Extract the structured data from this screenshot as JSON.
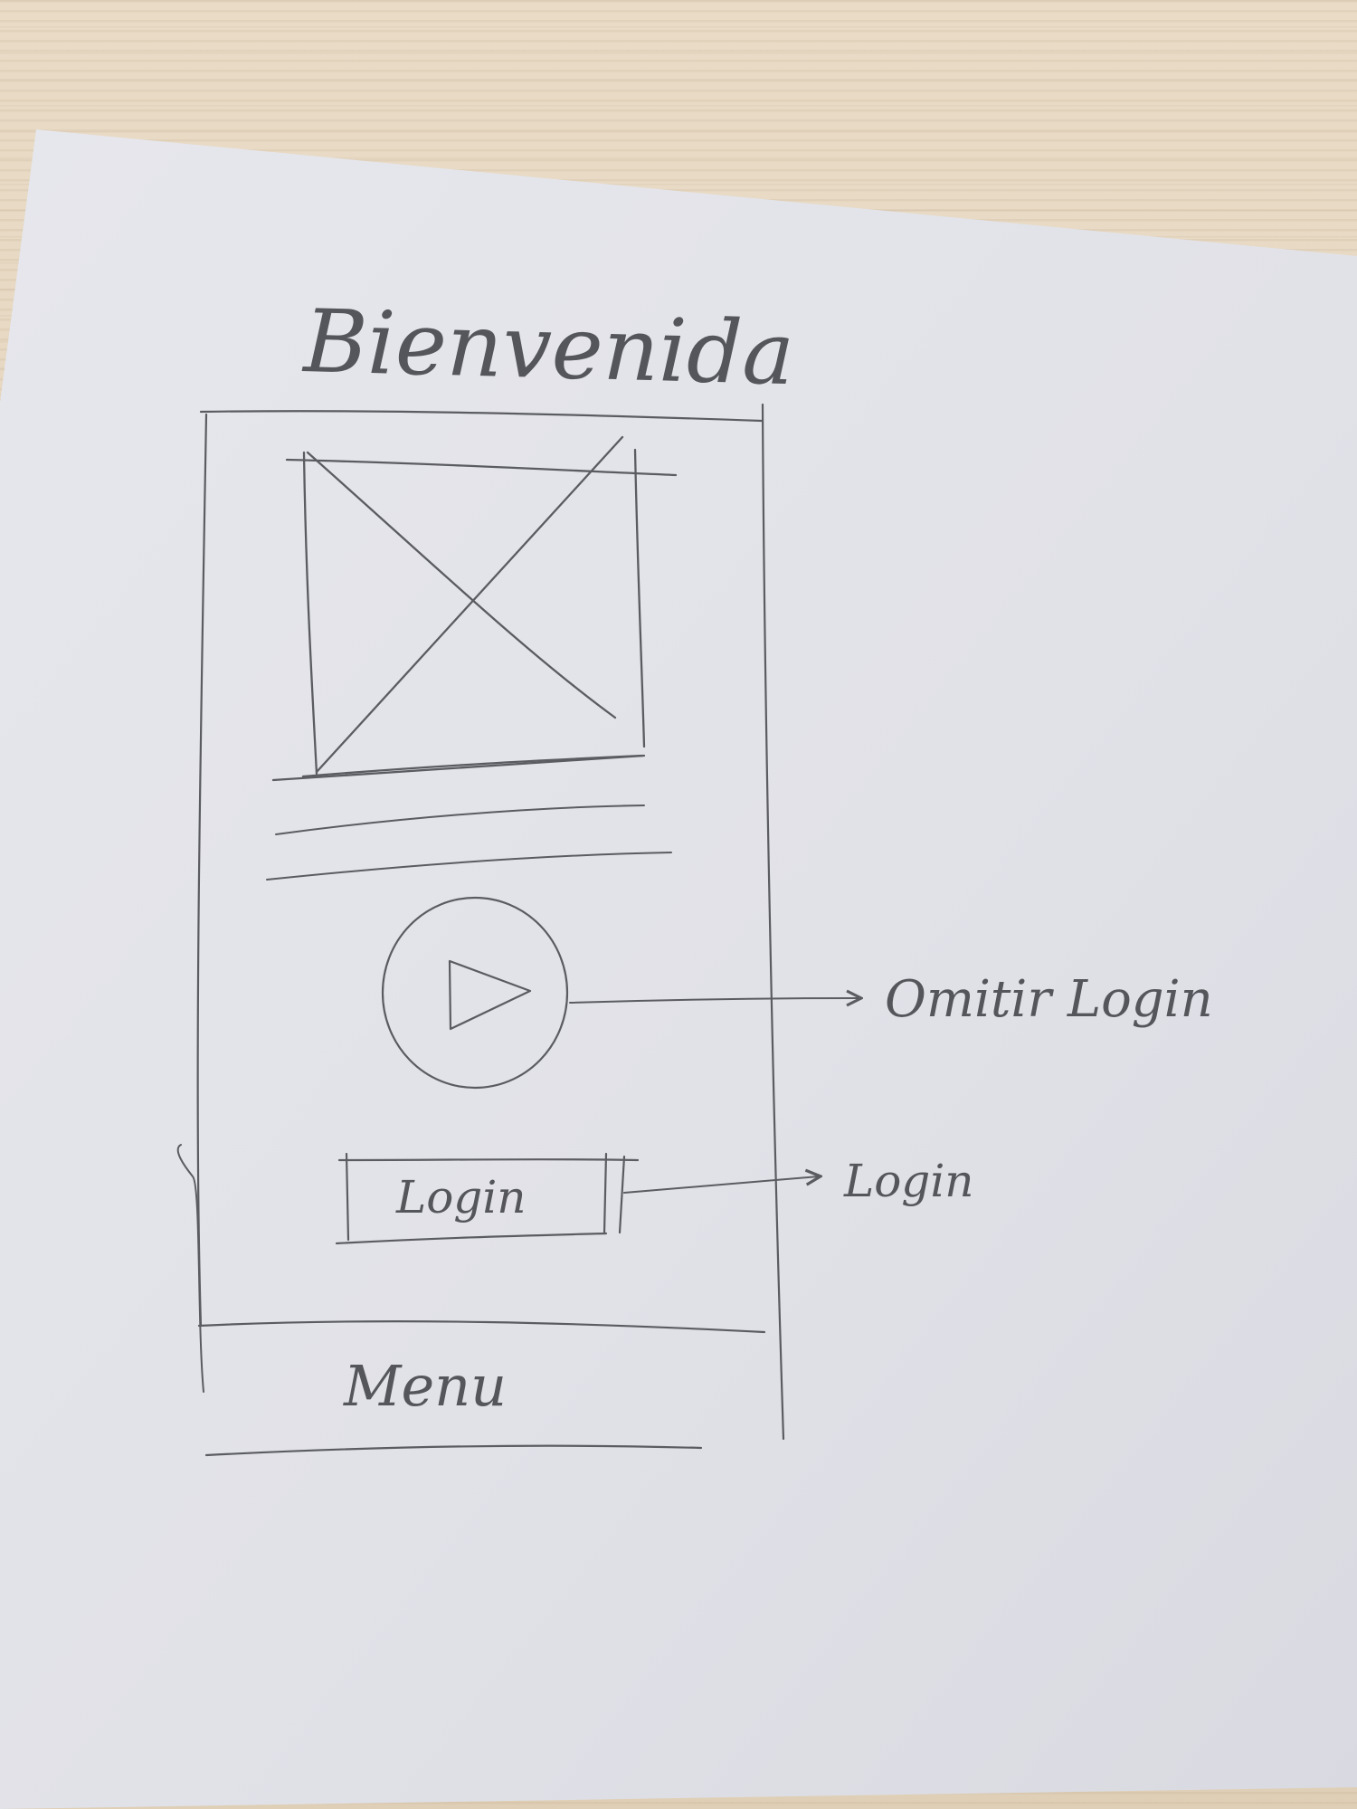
{
  "screen": {
    "title": "Bienvenida",
    "image_placeholder_icon": "image-placeholder-icon",
    "play_icon": "play-icon",
    "login_button_label": "Login",
    "menu_label": "Menu"
  },
  "annotations": {
    "play_target": "Omitir Login",
    "login_target": "Login"
  },
  "colors": {
    "paper": "#e3e4ea",
    "pencil": "#5b5c62",
    "wood": "#e8d9c3"
  }
}
